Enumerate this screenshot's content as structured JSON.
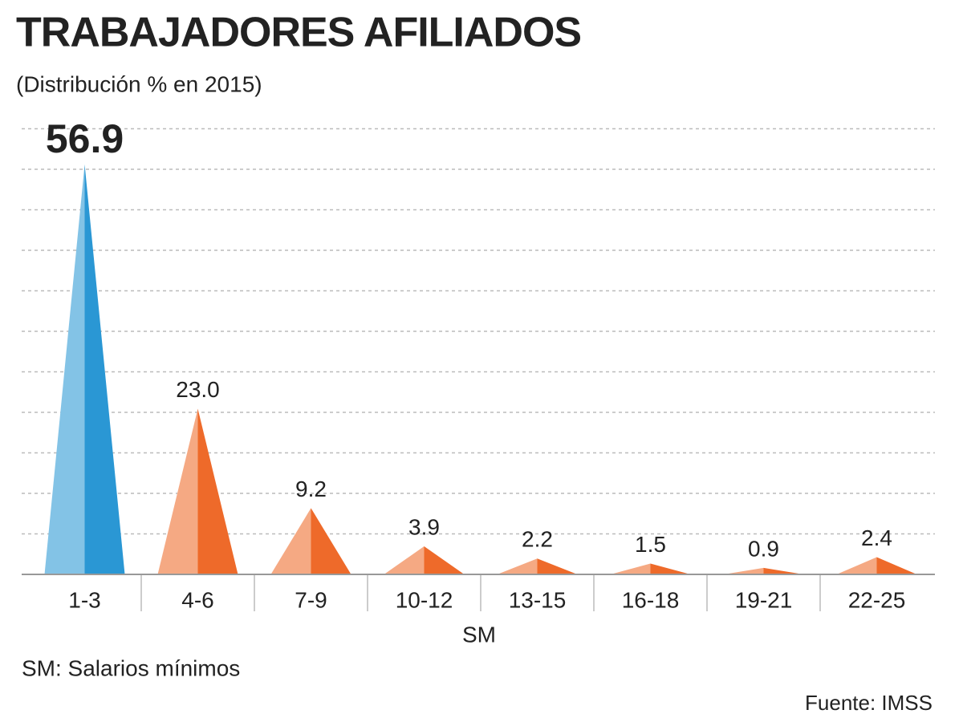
{
  "chart_data": {
    "type": "pyramid",
    "title": "TRABAJADORES AFILIADOS",
    "subtitle": "(Distribución % en 2015)",
    "x_label": "SM",
    "note": "SM: Salarios mínimos",
    "source": "Fuente: IMSS",
    "categories": [
      "1-3",
      "4-6",
      "7-9",
      "10-12",
      "13-15",
      "16-18",
      "19-21",
      "22-25"
    ],
    "values": [
      56.9,
      23.0,
      9.2,
      3.9,
      2.2,
      1.5,
      0.9,
      2.4
    ],
    "value_labels": [
      "56.9",
      "23.0",
      "9.2",
      "3.9",
      "2.2",
      "1.5",
      "0.9",
      "2.4"
    ],
    "colors": [
      "#2a97d4",
      "#ee6a2a",
      "#ee6a2a",
      "#ee6a2a",
      "#ee6a2a",
      "#ee6a2a",
      "#ee6a2a",
      "#ee6a2a"
    ],
    "grid": true
  }
}
